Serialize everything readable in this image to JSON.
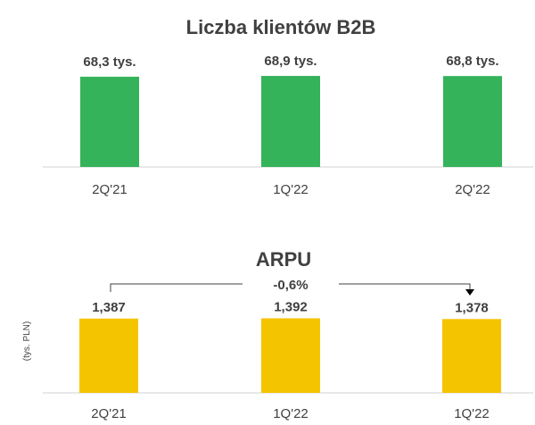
{
  "chart_data": [
    {
      "type": "bar",
      "title": "Liczba klientów B2B",
      "categories": [
        "2Q'21",
        "1Q'22",
        "2Q'22"
      ],
      "values": [
        68.3,
        68.9,
        68.8
      ],
      "data_labels": [
        "68,3 tys.",
        "68,9 tys.",
        "68,8 tys."
      ],
      "ylim": [
        0,
        75
      ],
      "color": "#35b35a",
      "grid": false
    },
    {
      "type": "bar",
      "title": "ARPU",
      "ylabel": "(tys. PLN)",
      "categories": [
        "2Q'21",
        "1Q'22",
        "1Q'22"
      ],
      "values": [
        1.387,
        1.392,
        1.378
      ],
      "data_labels": [
        "1,387",
        "1,392",
        "1,378"
      ],
      "ylim": [
        0,
        1.5
      ],
      "color": "#f5c400",
      "grid": false,
      "annotation": "-0,6%"
    }
  ]
}
